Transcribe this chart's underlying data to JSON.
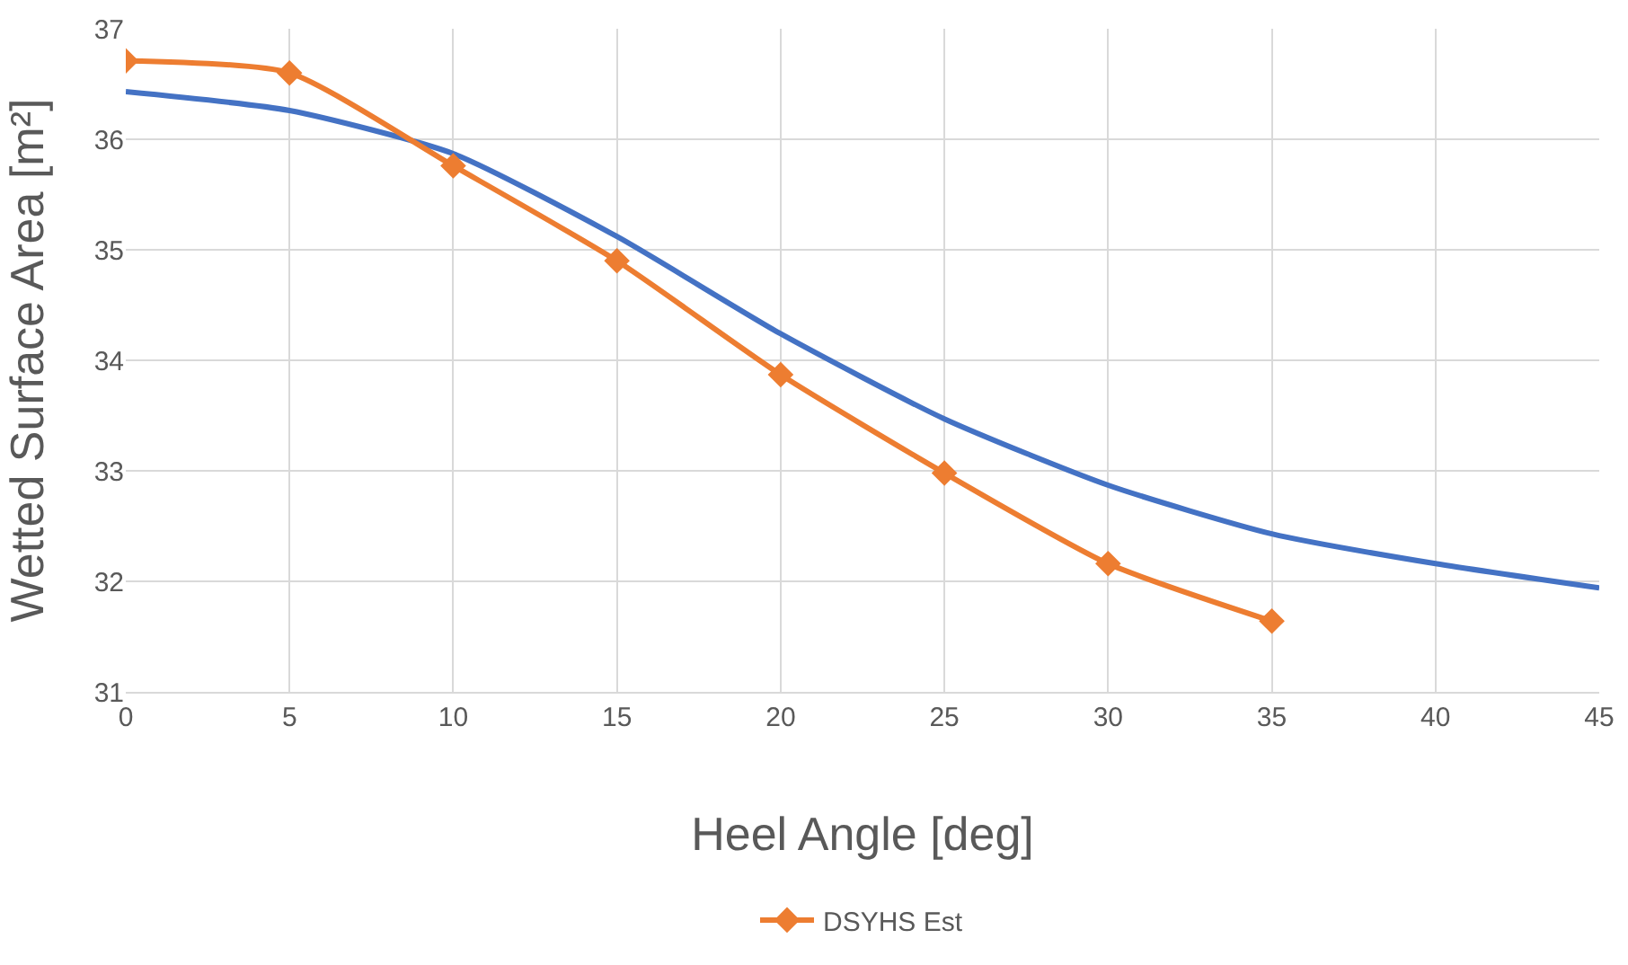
{
  "chart_data": {
    "type": "line",
    "xlabel": "Heel Angle [deg]",
    "ylabel": "Wetted Surface Area [m²]",
    "xlim": [
      0,
      45
    ],
    "xticks": [
      0,
      5,
      10,
      15,
      20,
      25,
      30,
      35,
      40,
      45
    ],
    "ylim": [
      31,
      37
    ],
    "yticks": [
      31,
      32,
      33,
      34,
      35,
      36,
      37
    ],
    "grid": true,
    "legend": "bottom",
    "series": [
      {
        "color": "#4472c4",
        "marker": "none",
        "x": [
          0,
          5,
          10,
          15,
          20,
          25,
          30,
          35,
          40,
          45
        ],
        "values": [
          36.43,
          36.26,
          35.87,
          35.12,
          34.24,
          33.47,
          32.87,
          32.43,
          32.16,
          31.94
        ]
      },
      {
        "name": "DSYHS Est",
        "color": "#ed7d31",
        "marker": "diamond",
        "x": [
          0,
          5,
          10,
          15,
          20,
          25,
          30,
          35
        ],
        "values": [
          36.71,
          36.6,
          35.76,
          34.9,
          33.87,
          32.98,
          32.16,
          31.64
        ]
      }
    ]
  }
}
